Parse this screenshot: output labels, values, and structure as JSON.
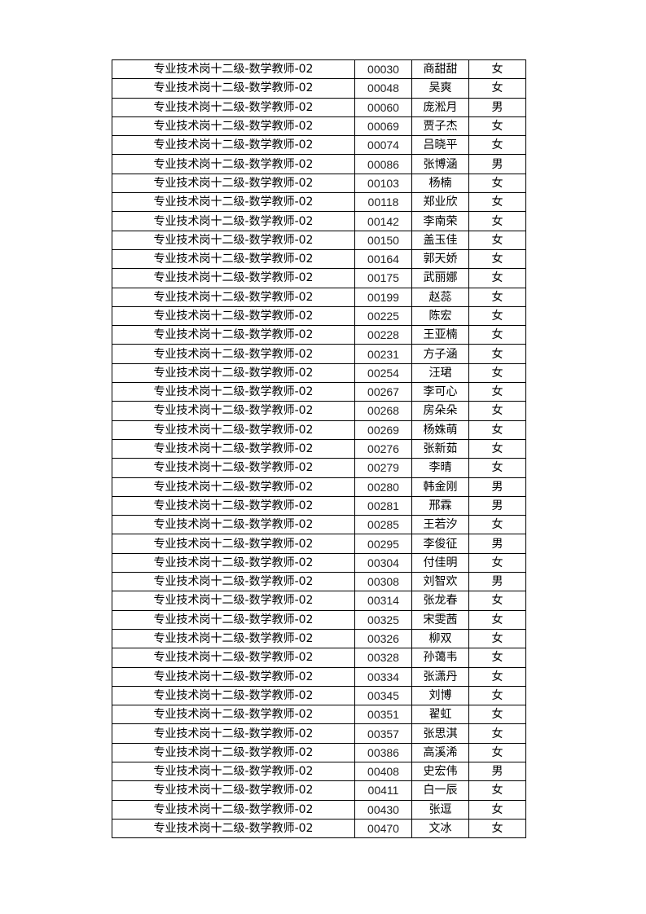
{
  "rows": [
    {
      "post": "专业技术岗十二级-数学教师-02",
      "id": "00030",
      "name": "商甜甜",
      "gender": "女"
    },
    {
      "post": "专业技术岗十二级-数学教师-02",
      "id": "00048",
      "name": "吴爽",
      "gender": "女"
    },
    {
      "post": "专业技术岗十二级-数学教师-02",
      "id": "00060",
      "name": "庞淞月",
      "gender": "男"
    },
    {
      "post": "专业技术岗十二级-数学教师-02",
      "id": "00069",
      "name": "贾子杰",
      "gender": "女"
    },
    {
      "post": "专业技术岗十二级-数学教师-02",
      "id": "00074",
      "name": "吕晓平",
      "gender": "女"
    },
    {
      "post": "专业技术岗十二级-数学教师-02",
      "id": "00086",
      "name": "张博涵",
      "gender": "男"
    },
    {
      "post": "专业技术岗十二级-数学教师-02",
      "id": "00103",
      "name": "杨楠",
      "gender": "女"
    },
    {
      "post": "专业技术岗十二级-数学教师-02",
      "id": "00118",
      "name": "郑业欣",
      "gender": "女"
    },
    {
      "post": "专业技术岗十二级-数学教师-02",
      "id": "00142",
      "name": "李南荣",
      "gender": "女"
    },
    {
      "post": "专业技术岗十二级-数学教师-02",
      "id": "00150",
      "name": "盖玉佳",
      "gender": "女"
    },
    {
      "post": "专业技术岗十二级-数学教师-02",
      "id": "00164",
      "name": "郭天娇",
      "gender": "女"
    },
    {
      "post": "专业技术岗十二级-数学教师-02",
      "id": "00175",
      "name": "武丽娜",
      "gender": "女"
    },
    {
      "post": "专业技术岗十二级-数学教师-02",
      "id": "00199",
      "name": "赵蕊",
      "gender": "女"
    },
    {
      "post": "专业技术岗十二级-数学教师-02",
      "id": "00225",
      "name": "陈宏",
      "gender": "女"
    },
    {
      "post": "专业技术岗十二级-数学教师-02",
      "id": "00228",
      "name": "王亚楠",
      "gender": "女"
    },
    {
      "post": "专业技术岗十二级-数学教师-02",
      "id": "00231",
      "name": "方子涵",
      "gender": "女"
    },
    {
      "post": "专业技术岗十二级-数学教师-02",
      "id": "00254",
      "name": "汪珺",
      "gender": "女"
    },
    {
      "post": "专业技术岗十二级-数学教师-02",
      "id": "00267",
      "name": "李可心",
      "gender": "女"
    },
    {
      "post": "专业技术岗十二级-数学教师-02",
      "id": "00268",
      "name": "房朵朵",
      "gender": "女"
    },
    {
      "post": "专业技术岗十二级-数学教师-02",
      "id": "00269",
      "name": "杨姝萌",
      "gender": "女"
    },
    {
      "post": "专业技术岗十二级-数学教师-02",
      "id": "00276",
      "name": "张新茹",
      "gender": "女"
    },
    {
      "post": "专业技术岗十二级-数学教师-02",
      "id": "00279",
      "name": "李晴",
      "gender": "女"
    },
    {
      "post": "专业技术岗十二级-数学教师-02",
      "id": "00280",
      "name": "韩金刚",
      "gender": "男"
    },
    {
      "post": "专业技术岗十二级-数学教师-02",
      "id": "00281",
      "name": "邢霖",
      "gender": "男"
    },
    {
      "post": "专业技术岗十二级-数学教师-02",
      "id": "00285",
      "name": "王若汐",
      "gender": "女"
    },
    {
      "post": "专业技术岗十二级-数学教师-02",
      "id": "00295",
      "name": "李俊征",
      "gender": "男"
    },
    {
      "post": "专业技术岗十二级-数学教师-02",
      "id": "00304",
      "name": "付佳明",
      "gender": "女"
    },
    {
      "post": "专业技术岗十二级-数学教师-02",
      "id": "00308",
      "name": "刘智欢",
      "gender": "男"
    },
    {
      "post": "专业技术岗十二级-数学教师-02",
      "id": "00314",
      "name": "张龙春",
      "gender": "女"
    },
    {
      "post": "专业技术岗十二级-数学教师-02",
      "id": "00325",
      "name": "宋雯茜",
      "gender": "女"
    },
    {
      "post": "专业技术岗十二级-数学教师-02",
      "id": "00326",
      "name": "柳双",
      "gender": "女"
    },
    {
      "post": "专业技术岗十二级-数学教师-02",
      "id": "00328",
      "name": "孙蔼韦",
      "gender": "女"
    },
    {
      "post": "专业技术岗十二级-数学教师-02",
      "id": "00334",
      "name": "张潇丹",
      "gender": "女"
    },
    {
      "post": "专业技术岗十二级-数学教师-02",
      "id": "00345",
      "name": "刘博",
      "gender": "女"
    },
    {
      "post": "专业技术岗十二级-数学教师-02",
      "id": "00351",
      "name": "翟虹",
      "gender": "女"
    },
    {
      "post": "专业技术岗十二级-数学教师-02",
      "id": "00357",
      "name": "张思淇",
      "gender": "女"
    },
    {
      "post": "专业技术岗十二级-数学教师-02",
      "id": "00386",
      "name": "高溪浠",
      "gender": "女"
    },
    {
      "post": "专业技术岗十二级-数学教师-02",
      "id": "00408",
      "name": "史宏伟",
      "gender": "男"
    },
    {
      "post": "专业技术岗十二级-数学教师-02",
      "id": "00411",
      "name": "白一辰",
      "gender": "女"
    },
    {
      "post": "专业技术岗十二级-数学教师-02",
      "id": "00430",
      "name": "张逗",
      "gender": "女"
    },
    {
      "post": "专业技术岗十二级-数学教师-02",
      "id": "00470",
      "name": "文冰",
      "gender": "女"
    }
  ]
}
